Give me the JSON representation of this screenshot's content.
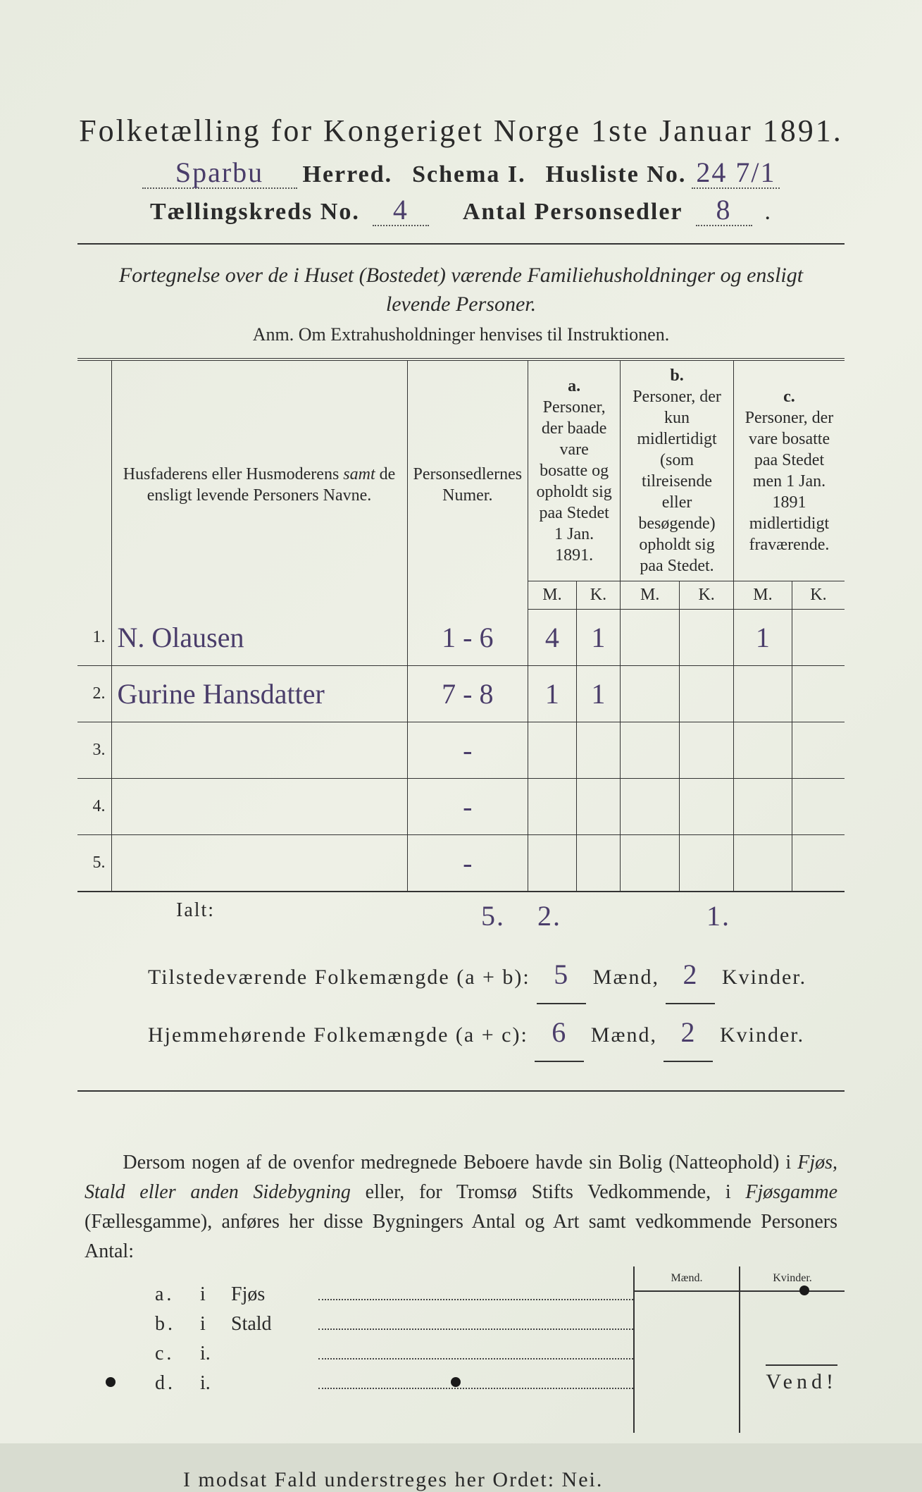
{
  "header": {
    "title": "Folketælling for Kongeriget Norge 1ste Januar 1891.",
    "herred_value": "Sparbu",
    "herred_label": "Herred.",
    "schema_label": "Schema I.",
    "husliste_label": "Husliste No.",
    "husliste_value": "24 7/1",
    "kreds_label": "Tællingskreds No.",
    "kreds_value": "4",
    "antal_label": "Antal Personsedler",
    "antal_value": "8"
  },
  "subtitle": {
    "line1": "Fortegnelse over de i Huset (Bostedet) værende Familiehusholdninger og ensligt",
    "line2": "levende Personer.",
    "anm": "Anm. Om Extrahusholdninger henvises til Instruktionen."
  },
  "table": {
    "col_name_hdr": "Husfaderens eller Husmoderens samt de ensligt levende Personers Navne.",
    "col_ps_hdr": "Personsedlernes Numer.",
    "col_a_top": "a.",
    "col_a_hdr": "Personer, der baade vare bosatte og opholdt sig paa Stedet 1 Jan. 1891.",
    "col_b_top": "b.",
    "col_b_hdr": "Personer, der kun midlertidigt (som tilreisende eller besøgende) opholdt sig paa Stedet.",
    "col_c_top": "c.",
    "col_c_hdr": "Personer, der vare bosatte paa Stedet men 1 Jan. 1891 midlertidigt fraværende.",
    "m": "M.",
    "k": "K.",
    "rows": [
      {
        "n": "1.",
        "name": "N. Olausen",
        "ps": "1 - 6",
        "am": "4",
        "ak": "1",
        "bm": "",
        "bk": "",
        "cm": "1",
        "ck": ""
      },
      {
        "n": "2.",
        "name": "Gurine Hansdatter",
        "ps": "7 - 8",
        "am": "1",
        "ak": "1",
        "bm": "",
        "bk": "",
        "cm": "",
        "ck": ""
      },
      {
        "n": "3.",
        "name": "",
        "ps": "-",
        "am": "",
        "ak": "",
        "bm": "",
        "bk": "",
        "cm": "",
        "ck": ""
      },
      {
        "n": "4.",
        "name": "",
        "ps": "-",
        "am": "",
        "ak": "",
        "bm": "",
        "bk": "",
        "cm": "",
        "ck": ""
      },
      {
        "n": "5.",
        "name": "",
        "ps": "-",
        "am": "",
        "ak": "",
        "bm": "",
        "bk": "",
        "cm": "",
        "ck": ""
      }
    ],
    "ialt_label": "Ialt:",
    "ialt": {
      "am": "5.",
      "ak": "2.",
      "bm": "",
      "bk": "",
      "cm": "1.",
      "ck": ""
    }
  },
  "summary": {
    "line1_pre": "Tilstedeværende Folkemængde (a + b):",
    "line1_m": "5",
    "line1_k": "2",
    "line2_pre": "Hjemmehørende Folkemængde (a + c):",
    "line2_m": "6",
    "line2_k": "2",
    "maend": "Mænd,",
    "kvinder": "Kvinder."
  },
  "para": "Dersom nogen af de ovenfor medregnede Beboere havde sin Bolig (Natteophold) i Fjøs, Stald eller anden Sidebygning eller, for Tromsø Stifts Vedkommende, i Fjøsgamme (Fællesgamme), anføres her disse Bygningers Antal og Art samt vedkommende Personers Antal:",
  "boxes": {
    "maend": "Mænd.",
    "kvinder": "Kvinder."
  },
  "list": [
    {
      "l": "a.",
      "i": "i",
      "nm": "Fjøs"
    },
    {
      "l": "b.",
      "i": "i",
      "nm": "Stald"
    },
    {
      "l": "c.",
      "i": "i.",
      "nm": ""
    },
    {
      "l": "d.",
      "i": "i.",
      "nm": ""
    }
  ],
  "nei": "I modsat Fald understreges her Ordet: Nei.",
  "vend": "Vend!",
  "colors": {
    "ink": "#2a2a2a",
    "handwriting": "#4a3d6a",
    "paper_bg": "#e8ebe0"
  }
}
